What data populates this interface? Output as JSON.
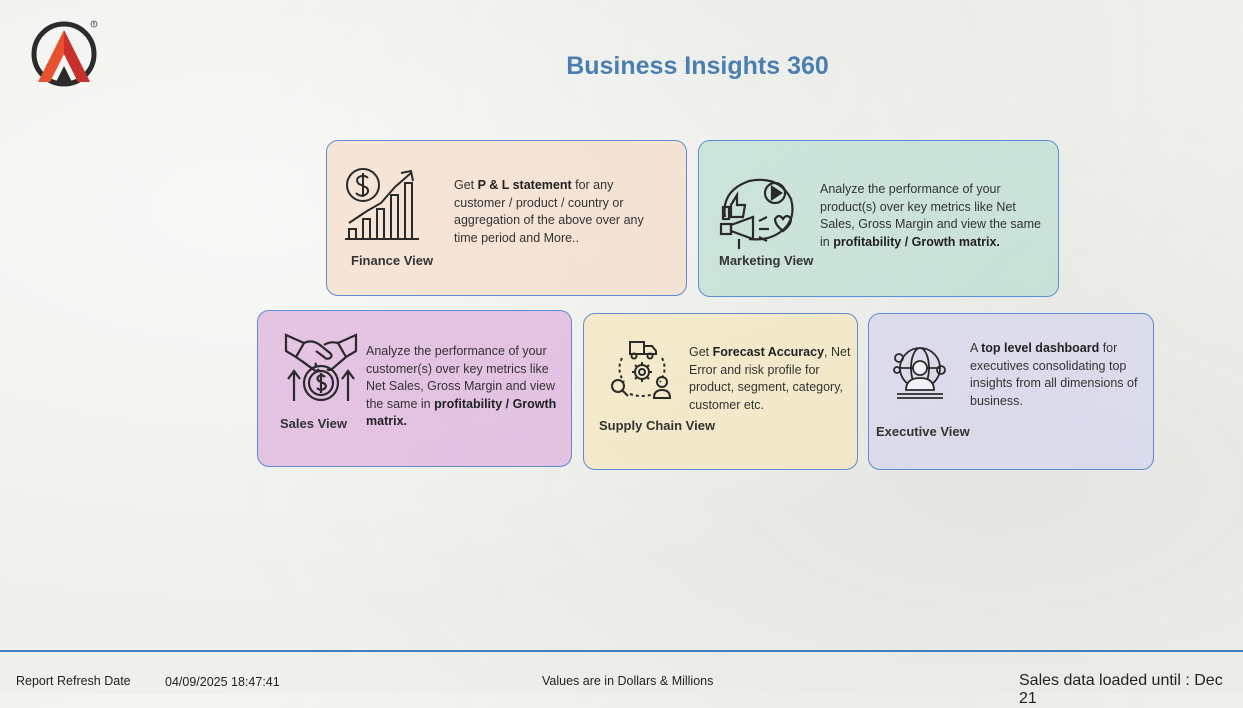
{
  "header": {
    "title": "Business Insights 360"
  },
  "cards": {
    "finance": {
      "label": "Finance View",
      "pre": "Get ",
      "bold": "P & L statement",
      "post": " for any customer / product / country or aggregation of the above over any time period and More.."
    },
    "marketing": {
      "label": "Marketing View",
      "pre": "Analyze the performance of your product(s) over key metrics like Net Sales, Gross Margin and view the same in ",
      "bold": "profitability / Growth matrix.",
      "post": ""
    },
    "sales": {
      "label": "Sales View",
      "pre": "Analyze the performance of your customer(s) over key metrics like Net Sales, Gross Margin and view the same in ",
      "bold": "profitability / Growth matrix.",
      "post": ""
    },
    "supply_chain": {
      "label": "Supply Chain View",
      "pre": "Get ",
      "bold": "Forecast Accuracy",
      "post": ", Net Error and risk profile for product, segment, category, customer etc."
    },
    "executive": {
      "label": "Executive View",
      "pre": "A ",
      "bold": "top level dashboard",
      "post": " for executives consolidating top insights from all dimensions of business."
    }
  },
  "footer": {
    "refresh_label": "Report Refresh Date",
    "refresh_value": "04/09/2025 18:47:41",
    "units_note": "Values are in Dollars & Millions",
    "sales_loaded": "Sales data loaded until : Dec 21"
  },
  "icons": {
    "logo": "atliq-logo",
    "finance": "dollar-growth-chart-icon",
    "marketing": "megaphone-marketing-icon",
    "sales": "handshake-dollar-icon",
    "supply_chain": "supply-chain-cycle-icon",
    "executive": "executive-globe-icon"
  },
  "colors": {
    "title": "#4a7fb0",
    "card_border": "#5b8ed0",
    "finance_bg": "#f6dac4",
    "marketing_bg": "#b4dccd",
    "sales_bg": "#deb2de",
    "supply_chain_bg": "#f5e8be",
    "executive_bg": "#d6d6ee",
    "footer_line": "#3d7fc6"
  }
}
